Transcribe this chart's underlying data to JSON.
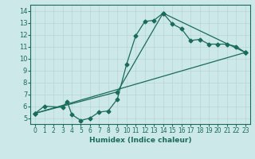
{
  "title": "",
  "xlabel": "Humidex (Indice chaleur)",
  "ylabel": "",
  "bg_color": "#cce8e8",
  "line_color": "#1a6b5a",
  "marker": "D",
  "markersize": 2.5,
  "linewidth": 0.9,
  "xlim": [
    -0.5,
    23.5
  ],
  "ylim": [
    4.5,
    14.5
  ],
  "xticks": [
    0,
    1,
    2,
    3,
    4,
    5,
    6,
    7,
    8,
    9,
    10,
    11,
    12,
    13,
    14,
    15,
    16,
    17,
    18,
    19,
    20,
    21,
    22,
    23
  ],
  "yticks": [
    5,
    6,
    7,
    8,
    9,
    10,
    11,
    12,
    13,
    14
  ],
  "series": [
    {
      "x": [
        0,
        1,
        3,
        3.5,
        4,
        5,
        6,
        7,
        8,
        9,
        10,
        11,
        12,
        13,
        14,
        15,
        16,
        17,
        18,
        19,
        20,
        21,
        22,
        23
      ],
      "y": [
        5.4,
        6.0,
        5.9,
        6.4,
        5.3,
        4.8,
        5.0,
        5.5,
        5.6,
        6.6,
        9.5,
        11.9,
        13.1,
        13.2,
        13.8,
        12.9,
        12.5,
        11.5,
        11.6,
        11.2,
        11.2,
        11.2,
        11.0,
        10.5
      ]
    },
    {
      "x": [
        0,
        23
      ],
      "y": [
        5.4,
        10.5
      ]
    },
    {
      "x": [
        0,
        9,
        14,
        23
      ],
      "y": [
        5.4,
        7.2,
        13.8,
        10.5
      ]
    }
  ]
}
